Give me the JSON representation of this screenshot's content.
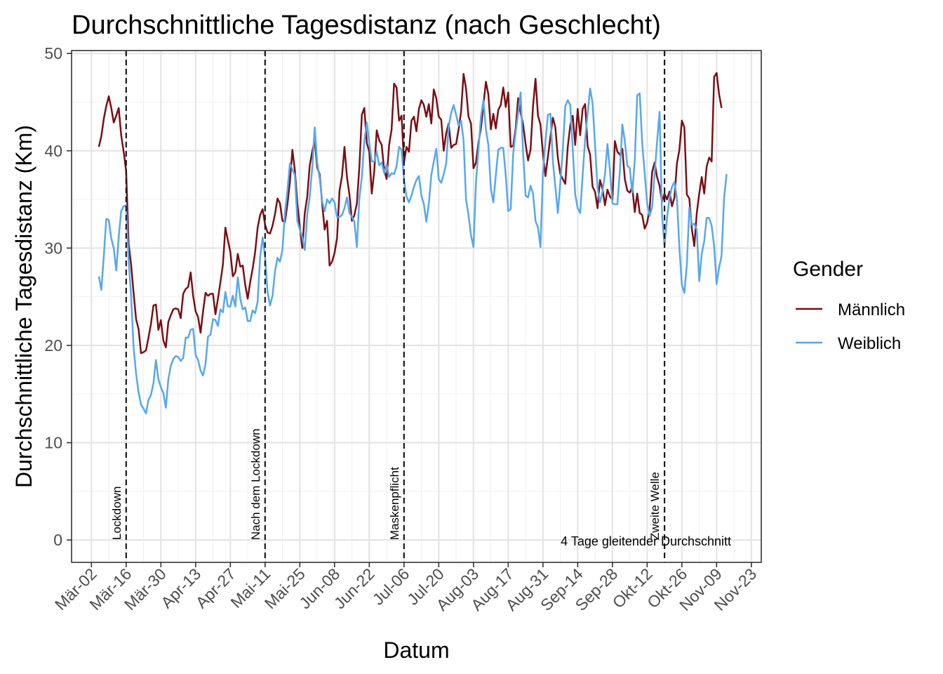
{
  "chart_data": {
    "type": "line",
    "title": "Durchschnittliche Tagesdistanz (nach Geschlecht)",
    "xlabel": "Datum",
    "ylabel": "Durchschnittliche Tagesdistanz (Km)",
    "x_start_date": "2020-03-02",
    "x_step_days": 1,
    "xlim_dates": [
      "2020-02-23",
      "2020-11-27"
    ],
    "ylim": [
      -2.3,
      50.3
    ],
    "y_ticks": [
      0,
      10,
      20,
      30,
      40,
      50
    ],
    "x_tick_dates": [
      "2020-03-02",
      "2020-03-16",
      "2020-03-30",
      "2020-04-13",
      "2020-04-27",
      "2020-05-11",
      "2020-05-25",
      "2020-06-08",
      "2020-06-22",
      "2020-07-06",
      "2020-07-20",
      "2020-08-03",
      "2020-08-17",
      "2020-08-31",
      "2020-09-14",
      "2020-09-28",
      "2020-10-12",
      "2020-10-26",
      "2020-11-09",
      "2020-11-23"
    ],
    "x_tick_labels": [
      "Mär-02",
      "Mär-16",
      "Mär-30",
      "Apr-13",
      "Apr-27",
      "Mai-11",
      "Mai-25",
      "Jun-08",
      "Jun-22",
      "Jul-06",
      "Jul-20",
      "Aug-03",
      "Aug-17",
      "Aug-31",
      "Sep-14",
      "Sep-28",
      "Okt-12",
      "Okt-26",
      "Nov-09",
      "Nov-23"
    ],
    "grid": true,
    "legend": {
      "title": "Gender",
      "position": "right"
    },
    "series": [
      {
        "name": "Männlich",
        "color": "#7a0f14",
        "start_date": "2020-03-05",
        "values": [
          40.4,
          41.5,
          43.3,
          44.6,
          45.6,
          44.4,
          42.9,
          43.6,
          44.4,
          41.6,
          39.9,
          37.9,
          30.4,
          28.3,
          25.4,
          22.7,
          21.7,
          19.2,
          19.3,
          19.5,
          20.8,
          22.2,
          24.1,
          24.2,
          21.6,
          22.6,
          20.5,
          19.8,
          22.4,
          23.1,
          23.7,
          23.8,
          23.7,
          22.8,
          25.3,
          25.8,
          26.0,
          27.5,
          25.1,
          23.5,
          22.9,
          21.3,
          23.5,
          25.4,
          25.1,
          25.3,
          25.3,
          23.2,
          24.8,
          26.5,
          28.3,
          32.1,
          30.8,
          29.6,
          27.1,
          27.5,
          29.4,
          28.1,
          28.2,
          26.2,
          24.8,
          26.5,
          27.9,
          29.6,
          32.1,
          33.4,
          34.0,
          32.4,
          31.6,
          31.5,
          32.3,
          33.5,
          35.1,
          34.6,
          32.8,
          32.7,
          34.5,
          36.8,
          40.1,
          38.0,
          34.6,
          32.2,
          30.0,
          33.6,
          35.3,
          38.5,
          39.9,
          41.1,
          38.3,
          37.6,
          34.6,
          31.9,
          32.8,
          28.2,
          28.6,
          29.5,
          31.0,
          35.9,
          37.4,
          40.4,
          37.3,
          35.5,
          32.8,
          33.4,
          34.6,
          38.3,
          43.7,
          44.4,
          40.8,
          39.9,
          35.6,
          37.9,
          42.1,
          41.1,
          40.6,
          38.0,
          37.1,
          40.6,
          42.2,
          46.9,
          46.5,
          43.1,
          43.6,
          38.8,
          40.4,
          39.9,
          43.1,
          43.5,
          42.0,
          44.3,
          45.2,
          44.7,
          43.5,
          44.8,
          42.8,
          46.3,
          45.4,
          43.5,
          43.2,
          40.0,
          41.8,
          42.8,
          40.3,
          40.6,
          40.7,
          42.2,
          44.0,
          47.9,
          46.4,
          43.5,
          42.8,
          38.2,
          38.8,
          40.8,
          42.3,
          44.7,
          47.1,
          45.8,
          42.2,
          43.8,
          42.3,
          44.2,
          44.7,
          46.5,
          44.5,
          46.0,
          40.4,
          40.5,
          42.3,
          45.4,
          43.9,
          42.7,
          40.7,
          39.0,
          40.1,
          44.6,
          47.4,
          43.6,
          42.7,
          39.7,
          37.4,
          39.4,
          41.4,
          43.4,
          42.4,
          39.3,
          37.6,
          37.1,
          36.6,
          40.4,
          42.6,
          43.6,
          40.6,
          44.3,
          41.6,
          44.3,
          44.8,
          40.5,
          39.6,
          36.3,
          35.8,
          34.1,
          37.0,
          36.1,
          34.4,
          36.0,
          35.3,
          35.0,
          41.0,
          39.9,
          39.6,
          40.2,
          37.1,
          35.9,
          35.7,
          36.3,
          33.7,
          35.6,
          33.6,
          33.4,
          32.0,
          32.6,
          34.0,
          37.8,
          38.8,
          37.3,
          36.4,
          34.8,
          35.6,
          35.0,
          35.8,
          34.3,
          35.2,
          38.7,
          40.1,
          43.1,
          42.4,
          35.5,
          35.1,
          32.0,
          30.2,
          33.6,
          35.6,
          37.3,
          35.6,
          38.4,
          39.3,
          38.9,
          47.6,
          48.0,
          45.8,
          44.4
        ]
      },
      {
        "name": "Weiblich",
        "color": "#56a7f0",
        "start_date": "2020-03-05",
        "values": [
          27.1,
          25.7,
          29.2,
          33.0,
          32.9,
          31.0,
          30.0,
          27.7,
          31.1,
          33.8,
          34.3,
          34.4,
          28.8,
          25.1,
          19.8,
          17.1,
          15.2,
          13.9,
          13.5,
          13.0,
          14.4,
          14.9,
          16.1,
          18.5,
          16.5,
          15.7,
          15.1,
          13.6,
          16.5,
          17.9,
          18.6,
          18.9,
          18.8,
          18.4,
          18.7,
          20.8,
          20.8,
          21.6,
          21.7,
          19.0,
          18.5,
          17.4,
          16.9,
          18.1,
          20.9,
          21.1,
          22.7,
          22.6,
          22.0,
          23.7,
          23.4,
          25.5,
          24.0,
          24.0,
          25.1,
          24.0,
          27.0,
          24.8,
          23.7,
          23.9,
          22.5,
          22.5,
          23.6,
          23.3,
          24.5,
          29.1,
          31.1,
          29.1,
          25.5,
          24.1,
          25.1,
          27.6,
          29.0,
          28.6,
          29.8,
          33.6,
          35.9,
          38.7,
          38.1,
          37.5,
          32.8,
          31.9,
          31.1,
          29.8,
          33.5,
          35.3,
          38.2,
          42.4,
          38.8,
          37.2,
          34.8,
          33.8,
          35.0,
          34.6,
          35.1,
          34.7,
          33.2,
          33.2,
          33.4,
          34.1,
          35.2,
          33.6,
          33.2,
          32.7,
          30.1,
          35.1,
          37.3,
          41.0,
          42.9,
          40.8,
          38.9,
          38.9,
          39.9,
          38.5,
          38.8,
          37.7,
          38.6,
          37.3,
          37.7,
          37.6,
          38.4,
          40.4,
          40.1,
          37.0,
          35.3,
          34.7,
          35.4,
          36.3,
          37.0,
          37.4,
          35.4,
          34.5,
          32.7,
          34.6,
          37.5,
          38.9,
          40.2,
          37.1,
          36.7,
          37.6,
          38.7,
          42.5,
          43.9,
          44.7,
          43.7,
          42.6,
          43.1,
          41.1,
          35.0,
          33.4,
          31.3,
          30.1,
          36.8,
          40.1,
          43.5,
          45.2,
          42.2,
          40.6,
          36.1,
          34.7,
          37.5,
          40.1,
          40.3,
          40.3,
          37.5,
          33.8,
          34.0,
          39.7,
          41.9,
          43.9,
          46.0,
          39.7,
          35.4,
          35.2,
          36.4,
          35.6,
          32.8,
          32.1,
          30.1,
          37.7,
          41.0,
          43.7,
          43.8,
          38.9,
          36.3,
          33.6,
          36.7,
          40.1,
          44.6,
          45.2,
          44.7,
          40.2,
          35.5,
          34.1,
          33.6,
          37.5,
          41.2,
          43.8,
          46.4,
          44.9,
          40.6,
          36.2,
          34.7,
          35.8,
          37.6,
          40.7,
          38.0,
          34.6,
          34.5,
          34.5,
          37.9,
          42.7,
          41.0,
          38.5,
          38.2,
          35.7,
          39.0,
          45.7,
          45.9,
          40.8,
          37.7,
          34.6,
          33.3,
          34.2,
          37.6,
          40.9,
          44.0,
          33.4,
          30.2,
          33.1,
          35.1,
          36.3,
          36.8,
          35.1,
          30.0,
          26.2,
          25.4,
          28.3,
          34.2,
          32.4,
          32.5,
          31.9,
          26.6,
          29.4,
          30.7,
          33.1,
          33.1,
          32.3,
          30.2,
          26.3,
          28.0,
          29.2,
          35.1,
          37.6
        ]
      }
    ],
    "events": [
      {
        "date": "2020-03-16",
        "label": "Lockdown"
      },
      {
        "date": "2020-05-11",
        "label": "Nach dem Lockdown"
      },
      {
        "date": "2020-07-06",
        "label": "Maskenpflicht"
      },
      {
        "date": "2020-10-19",
        "label": "Zweite Welle"
      }
    ],
    "note": {
      "text": "4 Tage gleitender Durchschnitt",
      "position": "bottom-right"
    }
  }
}
